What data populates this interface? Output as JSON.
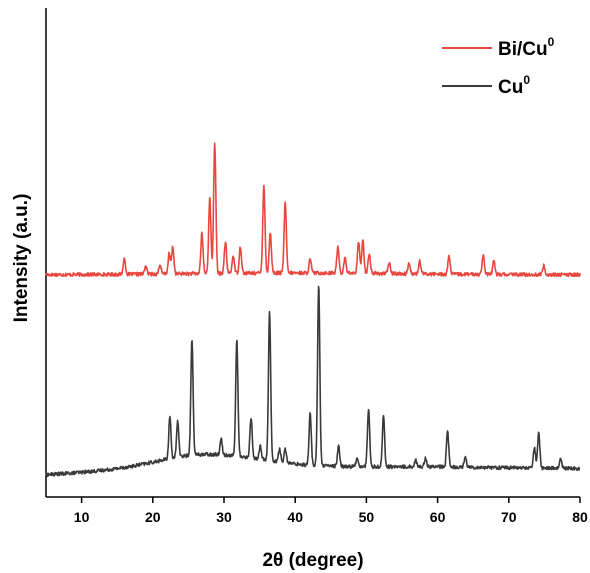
{
  "chart_data": {
    "type": "line",
    "title": "",
    "xlabel": "2θ (degree)",
    "ylabel": "Intensity (a.u.)",
    "xlim": [
      5,
      80
    ],
    "ylim": [
      0,
      1.1
    ],
    "xticks": [
      "10",
      "20",
      "30",
      "40",
      "50",
      "60",
      "70",
      "80"
    ],
    "x_tick_values": [
      10,
      20,
      30,
      40,
      50,
      60,
      70,
      80
    ],
    "grid": false,
    "legend_position": "top-right",
    "series": [
      {
        "name": "Bi/Cu",
        "name_superscript": "0",
        "color": "#e8473f",
        "baseline": 0.5,
        "peaks": [
          [
            16.0,
            0.035
          ],
          [
            19.0,
            0.018
          ],
          [
            21.0,
            0.02
          ],
          [
            22.3,
            0.045
          ],
          [
            22.8,
            0.06
          ],
          [
            26.9,
            0.09
          ],
          [
            28.0,
            0.17
          ],
          [
            28.7,
            0.295
          ],
          [
            30.2,
            0.07
          ],
          [
            31.3,
            0.04
          ],
          [
            32.3,
            0.06
          ],
          [
            35.6,
            0.198
          ],
          [
            36.5,
            0.09
          ],
          [
            38.6,
            0.16
          ],
          [
            42.1,
            0.03
          ],
          [
            46.0,
            0.06
          ],
          [
            47.0,
            0.035
          ],
          [
            48.9,
            0.07
          ],
          [
            49.5,
            0.075
          ],
          [
            50.4,
            0.045
          ],
          [
            53.2,
            0.025
          ],
          [
            56.0,
            0.025
          ],
          [
            57.5,
            0.028
          ],
          [
            61.6,
            0.04
          ],
          [
            66.4,
            0.045
          ],
          [
            67.9,
            0.03
          ],
          [
            74.9,
            0.02
          ]
        ]
      },
      {
        "name": "Cu",
        "name_superscript": "0",
        "color": "#3a3a3a",
        "baseline": 0.05,
        "peaks": [
          [
            22.4,
            0.095
          ],
          [
            23.5,
            0.08
          ],
          [
            25.5,
            0.26
          ],
          [
            29.6,
            0.035
          ],
          [
            31.8,
            0.26
          ],
          [
            33.8,
            0.09
          ],
          [
            35.1,
            0.03
          ],
          [
            36.4,
            0.335
          ],
          [
            37.8,
            0.03
          ],
          [
            38.6,
            0.03
          ],
          [
            42.1,
            0.115
          ],
          [
            43.3,
            0.408
          ],
          [
            46.1,
            0.045
          ],
          [
            48.7,
            0.02
          ],
          [
            50.3,
            0.13
          ],
          [
            52.4,
            0.115
          ],
          [
            56.9,
            0.015
          ],
          [
            58.3,
            0.02
          ],
          [
            61.4,
            0.08
          ],
          [
            63.9,
            0.025
          ],
          [
            73.6,
            0.045
          ],
          [
            74.2,
            0.08
          ],
          [
            77.3,
            0.02
          ]
        ]
      }
    ]
  }
}
